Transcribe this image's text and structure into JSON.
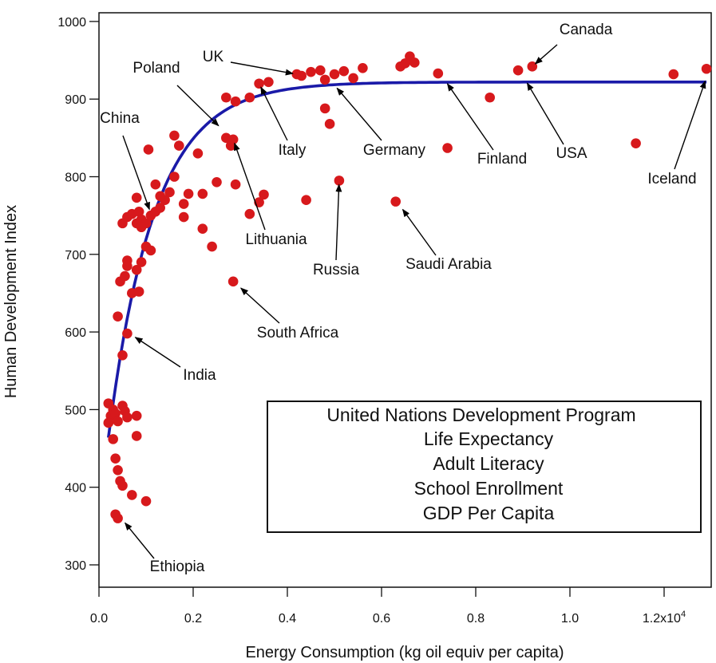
{
  "chart_data": {
    "type": "scatter",
    "xlabel": "Energy Consumption (kg oil equiv per capita)",
    "ylabel": "Human Development Index",
    "xlim": [
      0,
      1.3
    ],
    "ylim": [
      280,
      1010
    ],
    "x_tick_values": [
      0.0,
      0.2,
      0.4,
      0.6,
      0.8,
      1.0,
      1.2
    ],
    "x_tick_labels": [
      "0.0",
      "0.2",
      "0.4",
      "0.6",
      "0.8",
      "1.0",
      "1.2x10"
    ],
    "x_tick_exponent": "4",
    "y_ticks": [
      300,
      400,
      500,
      600,
      700,
      800,
      900,
      1000
    ],
    "grid": false,
    "series": [
      {
        "color": "#d7191c",
        "points": [
          [
            0.02,
            508
          ],
          [
            0.025,
            492
          ],
          [
            0.03,
            500
          ],
          [
            0.035,
            495
          ],
          [
            0.02,
            483
          ],
          [
            0.03,
            462
          ],
          [
            0.04,
            485
          ],
          [
            0.05,
            505
          ],
          [
            0.055,
            498
          ],
          [
            0.06,
            490
          ],
          [
            0.08,
            492
          ],
          [
            0.08,
            466
          ],
          [
            0.035,
            437
          ],
          [
            0.04,
            422
          ],
          [
            0.045,
            408
          ],
          [
            0.05,
            402
          ],
          [
            0.07,
            390
          ],
          [
            0.1,
            382
          ],
          [
            0.035,
            365
          ],
          [
            0.04,
            360
          ],
          [
            0.05,
            570
          ],
          [
            0.04,
            620
          ],
          [
            0.06,
            598
          ],
          [
            0.045,
            665
          ],
          [
            0.055,
            672
          ],
          [
            0.06,
            685
          ],
          [
            0.07,
            650
          ],
          [
            0.085,
            652
          ],
          [
            0.08,
            680
          ],
          [
            0.09,
            690
          ],
          [
            0.06,
            692
          ],
          [
            0.05,
            740
          ],
          [
            0.06,
            748
          ],
          [
            0.07,
            752
          ],
          [
            0.08,
            740
          ],
          [
            0.085,
            755
          ],
          [
            0.09,
            745
          ],
          [
            0.1,
            740
          ],
          [
            0.11,
            750
          ],
          [
            0.12,
            755
          ],
          [
            0.13,
            760
          ],
          [
            0.14,
            770
          ],
          [
            0.12,
            790
          ],
          [
            0.13,
            775
          ],
          [
            0.08,
            773
          ],
          [
            0.09,
            735
          ],
          [
            0.1,
            710
          ],
          [
            0.11,
            705
          ],
          [
            0.105,
            835
          ],
          [
            0.16,
            853
          ],
          [
            0.17,
            840
          ],
          [
            0.15,
            780
          ],
          [
            0.16,
            800
          ],
          [
            0.18,
            748
          ],
          [
            0.19,
            778
          ],
          [
            0.18,
            765
          ],
          [
            0.22,
            733
          ],
          [
            0.24,
            710
          ],
          [
            0.22,
            778
          ],
          [
            0.25,
            793
          ],
          [
            0.21,
            830
          ],
          [
            0.285,
            665
          ],
          [
            0.27,
            850
          ],
          [
            0.28,
            840
          ],
          [
            0.285,
            848
          ],
          [
            0.29,
            790
          ],
          [
            0.32,
            752
          ],
          [
            0.34,
            767
          ],
          [
            0.35,
            777
          ],
          [
            0.27,
            902
          ],
          [
            0.29,
            897
          ],
          [
            0.32,
            902
          ],
          [
            0.34,
            920
          ],
          [
            0.36,
            922
          ],
          [
            0.42,
            932
          ],
          [
            0.43,
            930
          ],
          [
            0.45,
            935
          ],
          [
            0.47,
            937
          ],
          [
            0.48,
            888
          ],
          [
            0.49,
            868
          ],
          [
            0.48,
            925
          ],
          [
            0.5,
            932
          ],
          [
            0.52,
            936
          ],
          [
            0.54,
            927
          ],
          [
            0.56,
            940
          ],
          [
            0.44,
            770
          ],
          [
            0.51,
            795
          ],
          [
            0.63,
            768
          ],
          [
            0.64,
            942
          ],
          [
            0.65,
            946
          ],
          [
            0.66,
            955
          ],
          [
            0.67,
            947
          ],
          [
            0.72,
            933
          ],
          [
            0.74,
            837
          ],
          [
            0.83,
            902
          ],
          [
            0.89,
            937
          ],
          [
            0.92,
            942
          ],
          [
            1.14,
            843
          ],
          [
            1.22,
            932
          ],
          [
            1.29,
            939
          ]
        ]
      }
    ],
    "fit_curve": {
      "color": "#1a1aa8",
      "x_range": [
        0.02,
        1.29
      ],
      "ymax": 922,
      "ymin": 440,
      "x0": 0.015,
      "rate": 10.2
    },
    "annotations": [
      {
        "label": "Canada",
        "point": [
          0.92,
          942
        ]
      },
      {
        "label": "UK",
        "point": [
          0.42,
          932
        ]
      },
      {
        "label": "Poland",
        "point": [
          0.26,
          862
        ]
      },
      {
        "label": "China",
        "point": [
          0.11,
          753
        ]
      },
      {
        "label": "Italy",
        "point": [
          0.34,
          920
        ]
      },
      {
        "label": "Germany",
        "point": [
          0.5,
          918
        ]
      },
      {
        "label": "Finland",
        "point": [
          0.735,
          924
        ]
      },
      {
        "label": "USA",
        "point": [
          0.905,
          925
        ]
      },
      {
        "label": "Iceland",
        "point": [
          1.29,
          928
        ]
      },
      {
        "label": "Lithuania",
        "point": [
          0.285,
          848
        ]
      },
      {
        "label": "Russia",
        "point": [
          0.51,
          795
        ]
      },
      {
        "label": "Saudi Arabia",
        "point": [
          0.64,
          762
        ]
      },
      {
        "label": "South Africa",
        "point": [
          0.295,
          660
        ]
      },
      {
        "label": "India",
        "point": [
          0.07,
          596
        ]
      },
      {
        "label": "Ethiopia",
        "point": [
          0.05,
          358
        ]
      }
    ],
    "legend_box": {
      "placement": "bottom-right",
      "lines": [
        "United Nations Development Program",
        "Life Expectancy",
        "Adult Literacy",
        "School Enrollment",
        "GDP Per Capita"
      ]
    }
  }
}
